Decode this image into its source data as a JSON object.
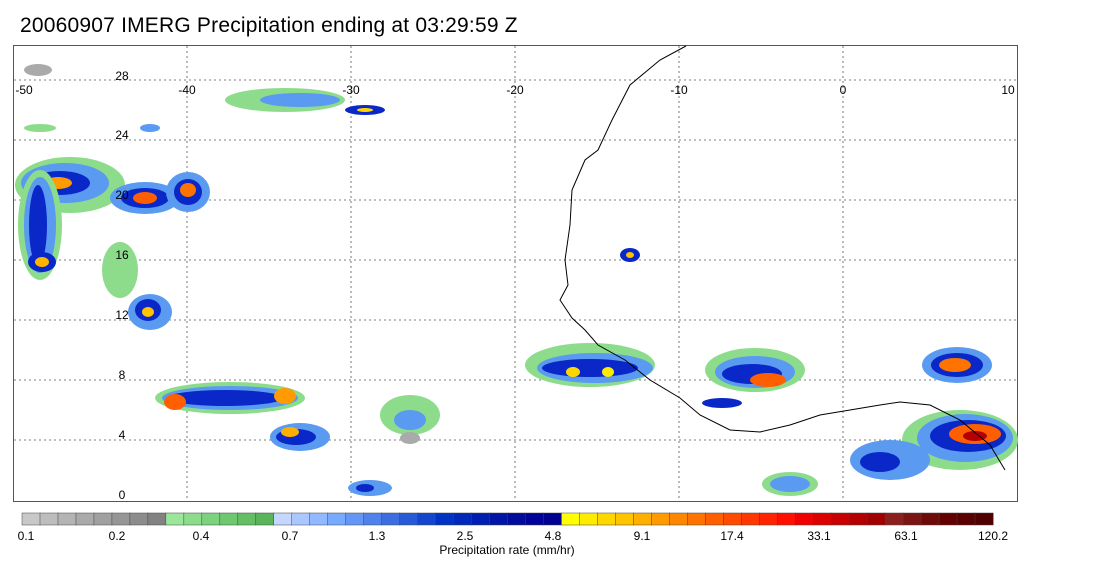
{
  "title": "20060907 IMERG Precipitation ending at 03:29:59 Z",
  "map": {
    "lon_labels": [
      "-50",
      "-40",
      "-30",
      "-20",
      "-10",
      "0",
      "10"
    ],
    "lat_labels": [
      "28",
      "24",
      "20",
      "16",
      "12",
      "8",
      "4",
      "0"
    ],
    "lon_range": [
      -50,
      10
    ],
    "lat_range": [
      -0.3,
      29.5
    ],
    "grid": "dotted"
  },
  "colorbar": {
    "title": "Precipitation rate (mm/hr)",
    "tick_labels": [
      "0.1",
      "0.2",
      "0.4",
      "0.7",
      "1.3",
      "2.5",
      "4.8",
      "9.1",
      "17.4",
      "33.1",
      "63.1",
      "120.2"
    ],
    "colors": [
      "#c8c8c8",
      "#bdbdbd",
      "#b4b4b4",
      "#aaaaaa",
      "#a0a0a0",
      "#969696",
      "#8c8c8c",
      "#828282",
      "#9be69b",
      "#8cdc8c",
      "#7dd27d",
      "#6ec86e",
      "#64be64",
      "#5ab45a",
      "#c3d7ff",
      "#aac8ff",
      "#91b9ff",
      "#78aaff",
      "#6496f5",
      "#5082eb",
      "#3c6ee1",
      "#285ad7",
      "#1446cd",
      "#0032c3",
      "#0028b9",
      "#001eaf",
      "#0014a5",
      "#000a9b",
      "#00009b",
      "#000091",
      "#ffff00",
      "#ffeb00",
      "#ffd700",
      "#ffc300",
      "#ffaf00",
      "#ff9b00",
      "#ff8700",
      "#ff7300",
      "#ff5f00",
      "#ff4b00",
      "#ff3700",
      "#ff2300",
      "#ff0f00",
      "#f00000",
      "#dc0000",
      "#c80000",
      "#b40000",
      "#a00000",
      "#8c1e1e",
      "#7d1414",
      "#6e0a0a",
      "#640000",
      "#5a0000",
      "#500000"
    ]
  },
  "legend_colors": {
    "light": "#5aa0f0",
    "medium": "#0028c8",
    "heavy": "#ffc800",
    "very_heavy": "#ff4000",
    "extreme": "#b40000",
    "trace_green": "#8cdc8c",
    "trace_gray": "#aaaaaa"
  }
}
